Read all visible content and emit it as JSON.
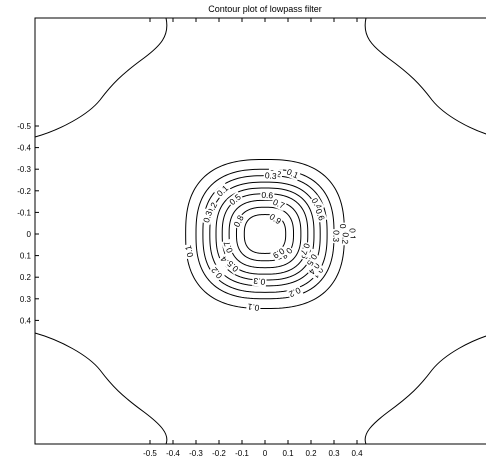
{
  "chart_data": {
    "type": "contour",
    "title": "Contour plot of lowpass filter",
    "xlabel": "",
    "ylabel": "",
    "xlim": [
      -0.5,
      0.5
    ],
    "ylim": [
      -0.5,
      0.5
    ],
    "y_direction": "reversed",
    "grid": false,
    "line_color": "#000000",
    "x_ticks": [
      -0.5,
      -0.4,
      -0.3,
      -0.2,
      -0.1,
      0,
      0.1,
      0.2,
      0.3,
      0.4
    ],
    "x_tick_labels": [
      "-0.5",
      "-0.4",
      "-0.3",
      "-0.2",
      "-0.1",
      "0",
      "0.1",
      "0.2",
      "0.3",
      "0.4"
    ],
    "y_ticks": [
      -0.5,
      -0.4,
      -0.3,
      -0.2,
      -0.1,
      0,
      0.1,
      0.2,
      0.3,
      0.4
    ],
    "y_tick_labels": [
      "-0.5",
      "-0.4",
      "-0.3",
      "-0.2",
      "-0.1",
      "0",
      "0.1",
      "0.2",
      "0.3",
      "0.4"
    ],
    "levels": [
      0.1,
      0.2,
      0.3,
      0.4,
      0.5,
      0.6,
      0.7,
      0.8,
      0.9
    ],
    "level_labels": [
      "0.1",
      "0.2",
      "0.3",
      "0.4",
      "0.5",
      "0.6",
      "0.7",
      "0.8",
      "0.9"
    ],
    "level_half_width": [
      0.345,
      0.3,
      0.27,
      0.24,
      0.213,
      0.186,
      0.156,
      0.124,
      0.09
    ],
    "contour_labels": [
      {
        "text": "0.1",
        "x": -0.185,
        "y": -0.2
      },
      {
        "text": "0.1",
        "x": 0.12,
        "y": -0.28
      },
      {
        "text": "0.1",
        "x": 0.38,
        "y": 0.0
      },
      {
        "text": "0.1",
        "x": 0.23,
        "y": 0.18
      },
      {
        "text": "0.1",
        "x": -0.05,
        "y": 0.34
      },
      {
        "text": "0.1",
        "x": -0.33,
        "y": 0.08
      },
      {
        "text": "0.2",
        "x": 0.045,
        "y": -0.28
      },
      {
        "text": "0.2",
        "x": 0.34,
        "y": -0.02
      },
      {
        "text": "0.2",
        "x": 0.13,
        "y": 0.27
      },
      {
        "text": "0.2",
        "x": -0.23,
        "y": -0.12
      },
      {
        "text": "0.2",
        "x": -0.21,
        "y": 0.18
      },
      {
        "text": "0.3",
        "x": 0.025,
        "y": -0.27
      },
      {
        "text": "0.3",
        "x": 0.31,
        "y": 0.01
      },
      {
        "text": "0.3",
        "x": -0.025,
        "y": 0.22
      },
      {
        "text": "0.3",
        "x": -0.25,
        "y": -0.08
      },
      {
        "text": "0.4",
        "x": 0.225,
        "y": -0.14
      },
      {
        "text": "0.4",
        "x": 0.215,
        "y": 0.16
      },
      {
        "text": "0.4",
        "x": -0.17,
        "y": 0.13
      },
      {
        "text": "0.5",
        "x": 0.205,
        "y": 0.12
      },
      {
        "text": "0.5",
        "x": -0.14,
        "y": 0.15
      },
      {
        "text": "0.5",
        "x": -0.13,
        "y": -0.16
      },
      {
        "text": "0.6",
        "x": 0.01,
        "y": -0.18
      },
      {
        "text": "0.6",
        "x": 0.24,
        "y": -0.09
      },
      {
        "text": "0.6",
        "x": 0.18,
        "y": 0.09
      },
      {
        "text": "0.7",
        "x": 0.06,
        "y": -0.14
      },
      {
        "text": "0.7",
        "x": 0.175,
        "y": 0.07
      },
      {
        "text": "0.7",
        "x": -0.16,
        "y": 0.06
      },
      {
        "text": "0.8",
        "x": -0.115,
        "y": -0.06
      },
      {
        "text": "0.8",
        "x": 0.095,
        "y": 0.09
      },
      {
        "text": "0.9",
        "x": 0.045,
        "y": -0.07
      },
      {
        "text": "0.9",
        "x": 0.06,
        "y": 0.09
      },
      {
        "text": "0.2",
        "x": 0.35,
        "y": 0.02
      }
    ]
  }
}
